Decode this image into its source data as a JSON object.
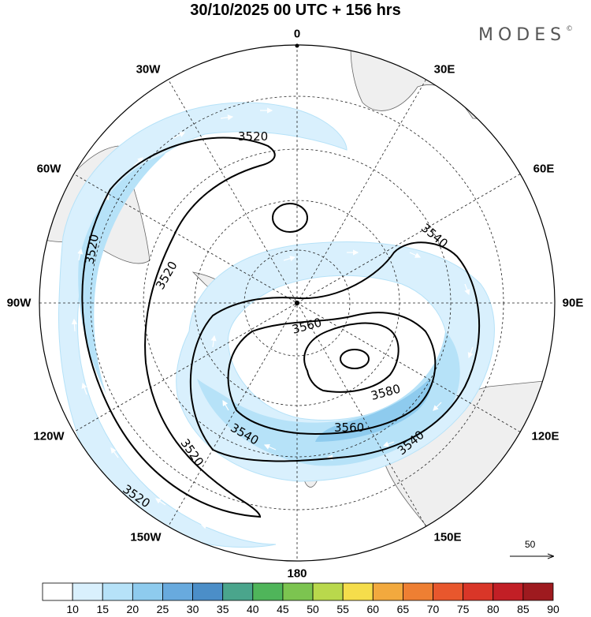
{
  "title": "30/10/2025  00 UTC  + 156 hrs",
  "brand": {
    "name": "MODES",
    "mark": "©"
  },
  "longitude_labels": [
    {
      "id": "0",
      "text": "0"
    },
    {
      "id": "30E",
      "text": "30E"
    },
    {
      "id": "60E",
      "text": "60E"
    },
    {
      "id": "90E",
      "text": "90E"
    },
    {
      "id": "120E",
      "text": "120E"
    },
    {
      "id": "150E",
      "text": "150E"
    },
    {
      "id": "180",
      "text": "180"
    },
    {
      "id": "150W",
      "text": "150W"
    },
    {
      "id": "120W",
      "text": "120W"
    },
    {
      "id": "90W",
      "text": "90W"
    },
    {
      "id": "60W",
      "text": "60W"
    },
    {
      "id": "30W",
      "text": "30W"
    }
  ],
  "contour_labels": [
    "3520",
    "3540",
    "3560",
    "3580"
  ],
  "wind_reference": {
    "value": "50"
  },
  "colorbar": {
    "labels": [
      "10",
      "15",
      "20",
      "25",
      "30",
      "35",
      "40",
      "45",
      "50",
      "55",
      "60",
      "65",
      "70",
      "75",
      "80",
      "85",
      "90"
    ],
    "colors": [
      "#ffffff",
      "#d9f0fd",
      "#b6e2f8",
      "#8ecbee",
      "#68aade",
      "#4b8ec8",
      "#4aa58c",
      "#4fb55a",
      "#7cc450",
      "#b9d84c",
      "#f5dd4b",
      "#f2a93e",
      "#ee7f33",
      "#e8572d",
      "#d93628",
      "#c21f26",
      "#9e1a1f"
    ]
  },
  "chart_data": {
    "type": "polar-stereographic-map",
    "projection": "south-polar-stereographic",
    "title": "30/10/2025  00 UTC  + 156 hrs",
    "valid_date": "30/10/2025",
    "hour": "00 UTC",
    "lead_time": "+ 156 hrs",
    "contour_field": "geopotential height",
    "contour_levels": [
      3520,
      3540,
      3560,
      3580
    ],
    "shaded_field": "wind speed",
    "shaded_levels": [
      10,
      15,
      20,
      25,
      30,
      35,
      40,
      45,
      50,
      55,
      60,
      65,
      70,
      75,
      80,
      85,
      90
    ],
    "vector_reference": 50,
    "meridians": [
      "0",
      "30E",
      "60E",
      "90E",
      "120E",
      "150E",
      "180",
      "150W",
      "120W",
      "90W",
      "60W",
      "30W"
    ]
  }
}
